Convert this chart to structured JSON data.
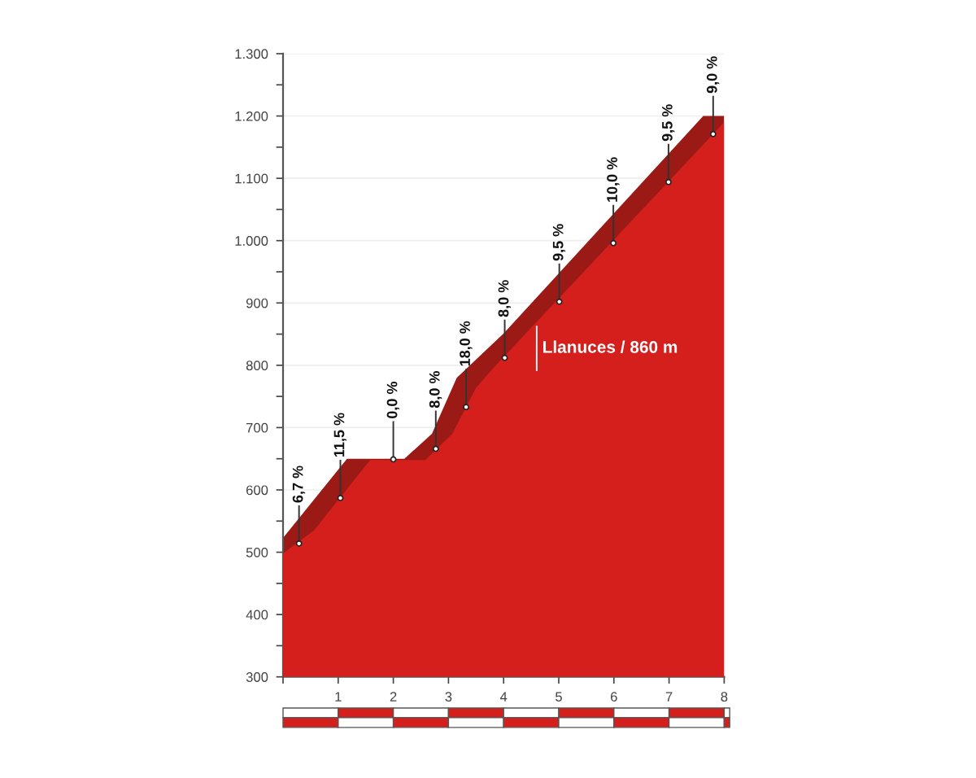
{
  "chart_data": {
    "type": "area",
    "series": [
      {
        "color": "#9b1a15",
        "x": [
          0,
          1.16,
          2.2,
          2.7,
          3.15,
          3.45,
          4.0,
          7.62,
          8
        ],
        "values": [
          523,
          650,
          650,
          690,
          780,
          805,
          851,
          1200,
          1200
        ]
      },
      {
        "color": "#d41f1c",
        "x": [
          0,
          0.56,
          1.58,
          2.58,
          3.07,
          3.5,
          3.85,
          8
        ],
        "values": [
          498,
          535,
          648,
          648,
          690,
          764,
          799,
          1190
        ]
      }
    ],
    "xlim": [
      0,
      8
    ],
    "xticks": [
      {
        "value": 0,
        "label": null
      },
      1,
      2,
      3,
      4,
      5,
      6,
      7,
      8
    ],
    "ylim": [
      300,
      1300
    ],
    "yticks": [
      300,
      {
        "value": 350,
        "label": null
      },
      400,
      {
        "value": 450,
        "label": null
      },
      500,
      {
        "value": 550,
        "label": null
      },
      600,
      {
        "value": 650,
        "label": null
      },
      700,
      {
        "value": 750,
        "label": null
      },
      800,
      {
        "value": 850,
        "label": null
      },
      900,
      {
        "value": 950,
        "label": null
      },
      {
        "value": 1000,
        "label": "1.000"
      },
      {
        "value": 1050,
        "label": null
      },
      {
        "value": 1100,
        "label": "1.100"
      },
      {
        "value": 1150,
        "label": null
      },
      {
        "value": 1200,
        "label": "1.200"
      },
      {
        "value": 1250,
        "label": null
      },
      {
        "value": 1300,
        "label": "1.300"
      }
    ],
    "grid": "y",
    "annotations": [
      {
        "text": "6,7 %",
        "x": 0.29,
        "y": 514
      },
      {
        "text": "11,5 %",
        "x": 1.04,
        "y": 587
      },
      {
        "text": "0,0 %",
        "x": 2.0,
        "y": 649
      },
      {
        "text": "8,0 %",
        "x": 2.77,
        "y": 666
      },
      {
        "text": "18,0 %",
        "x": 3.32,
        "y": 733
      },
      {
        "text": "8,0 %",
        "x": 4.02,
        "y": 812
      },
      {
        "text": "9,5 %",
        "x": 5.01,
        "y": 902
      },
      {
        "text": "10,0 %",
        "x": 5.99,
        "y": 996
      },
      {
        "text": "9,5 %",
        "x": 6.99,
        "y": 1094
      },
      {
        "text": "9,0 %",
        "x": 7.8,
        "y": 1171
      }
    ],
    "ref_lines": [
      {
        "axis": "x",
        "value": 4.6,
        "label": "Llanuces / 860 m",
        "color": "#ffffff"
      }
    ]
  }
}
